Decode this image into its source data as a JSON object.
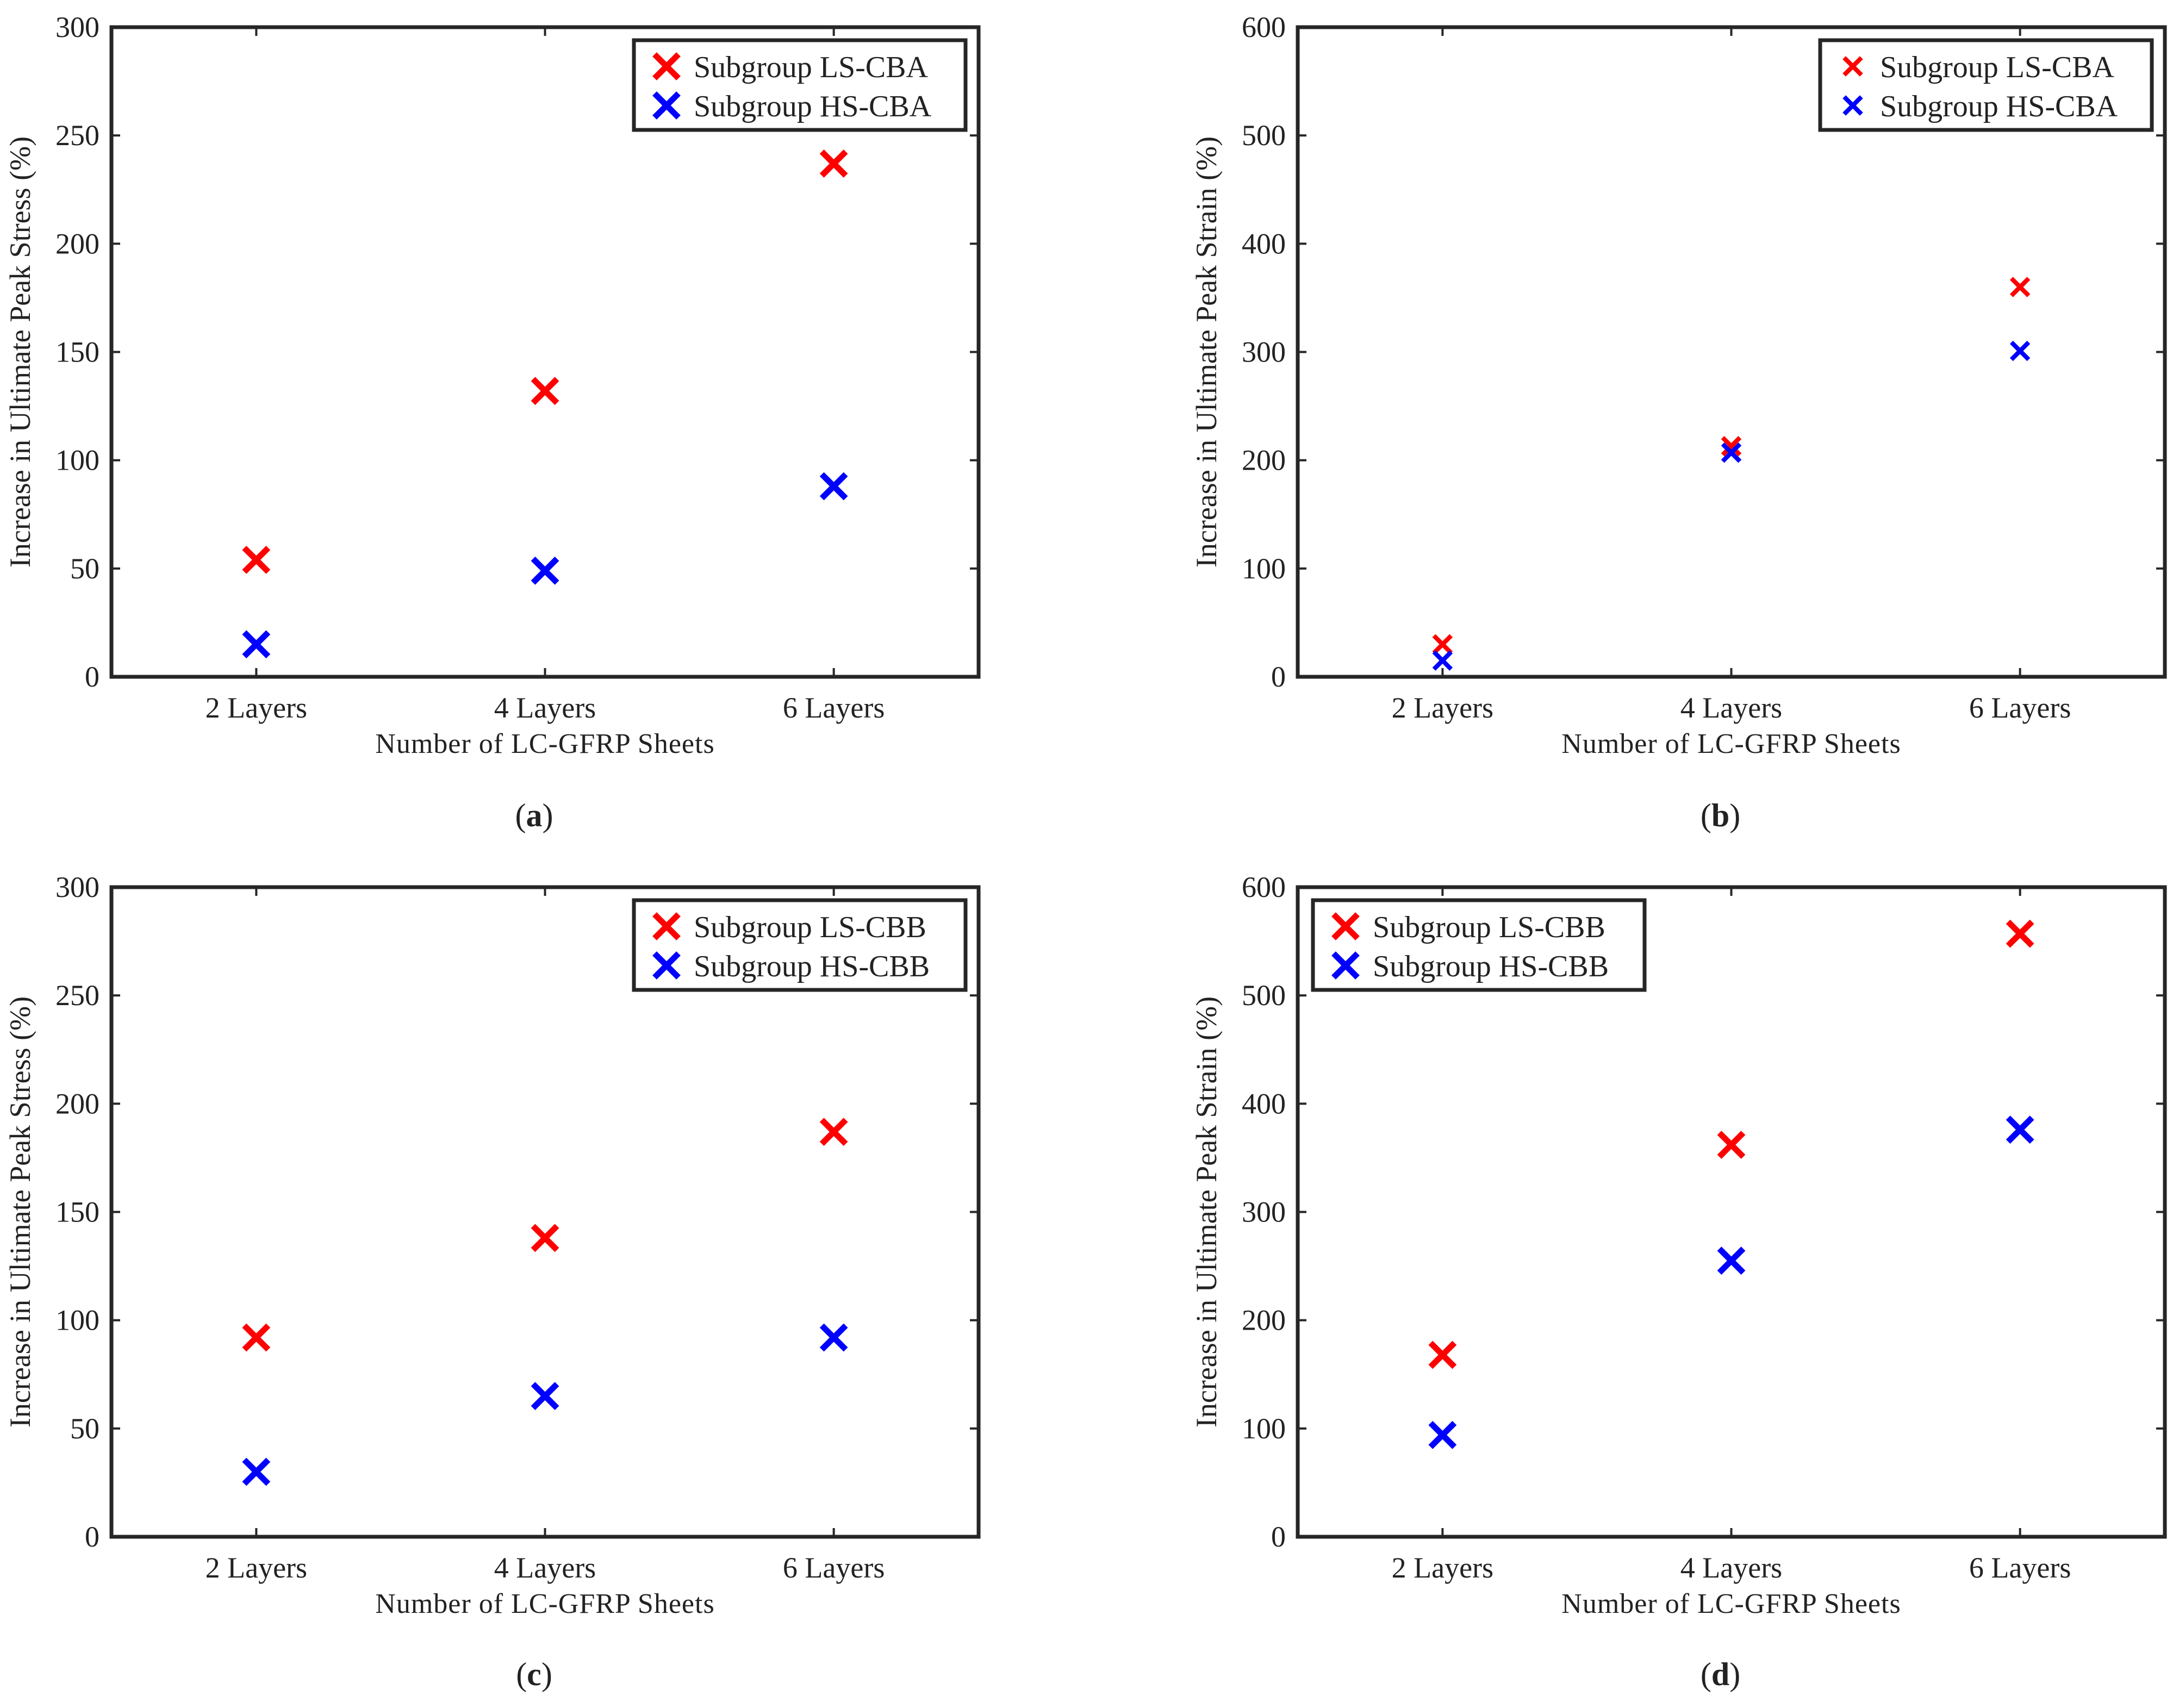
{
  "chart_data": [
    {
      "type": "scatter",
      "caption": "a",
      "categories": [
        "2 Layers",
        "4 Layers",
        "6 Layers"
      ],
      "xlabel": "Number of LC-GFRP Sheets",
      "ylabel": "Increase in Ultimate Peak Stress (%)",
      "ylim": [
        0,
        300
      ],
      "yticks": [
        0,
        50,
        100,
        150,
        200,
        250,
        300
      ],
      "legend_position": "top-right",
      "marker_scale": 1.0,
      "series": [
        {
          "name": "Subgroup LS-CBA",
          "color": "#ff0000",
          "values": [
            54,
            132,
            237
          ]
        },
        {
          "name": "Subgroup HS-CBA",
          "color": "#0000ff",
          "values": [
            15,
            49,
            88
          ]
        }
      ]
    },
    {
      "type": "scatter",
      "caption": "b",
      "categories": [
        "2 Layers",
        "4 Layers",
        "6 Layers"
      ],
      "xlabel": "Number of LC-GFRP Sheets",
      "ylabel": "Increase in Ultimate Peak Strain (%)",
      "ylim": [
        0,
        600
      ],
      "yticks": [
        0,
        100,
        200,
        300,
        400,
        500,
        600
      ],
      "legend_position": "top-right",
      "marker_scale": 0.72,
      "series": [
        {
          "name": "Subgroup LS-CBA",
          "color": "#ff0000",
          "values": [
            30,
            213,
            360
          ]
        },
        {
          "name": "Subgroup HS-CBA",
          "color": "#0000ff",
          "values": [
            15,
            207,
            301
          ]
        }
      ]
    },
    {
      "type": "scatter",
      "caption": "c",
      "categories": [
        "2 Layers",
        "4 Layers",
        "6 Layers"
      ],
      "xlabel": "Number of LC-GFRP Sheets",
      "ylabel": "Increase in Ultimate Peak Stress (%)",
      "ylim": [
        0,
        300
      ],
      "yticks": [
        0,
        50,
        100,
        150,
        200,
        250,
        300
      ],
      "legend_position": "top-right",
      "marker_scale": 1.0,
      "series": [
        {
          "name": "Subgroup LS-CBB",
          "color": "#ff0000",
          "values": [
            92,
            138,
            187
          ]
        },
        {
          "name": "Subgroup HS-CBB",
          "color": "#0000ff",
          "values": [
            30,
            65,
            92
          ]
        }
      ]
    },
    {
      "type": "scatter",
      "caption": "d",
      "categories": [
        "2 Layers",
        "4 Layers",
        "6 Layers"
      ],
      "xlabel": "Number of LC-GFRP Sheets",
      "ylabel": "Increase in Ultimate Peak Strain (%)",
      "ylim": [
        0,
        600
      ],
      "yticks": [
        0,
        100,
        200,
        300,
        400,
        500,
        600
      ],
      "legend_position": "top-left",
      "marker_scale": 1.0,
      "series": [
        {
          "name": "Subgroup LS-CBB",
          "color": "#ff0000",
          "values": [
            168,
            362,
            557
          ]
        },
        {
          "name": "Subgroup HS-CBB",
          "color": "#0000ff",
          "values": [
            94,
            255,
            376
          ]
        }
      ]
    }
  ]
}
